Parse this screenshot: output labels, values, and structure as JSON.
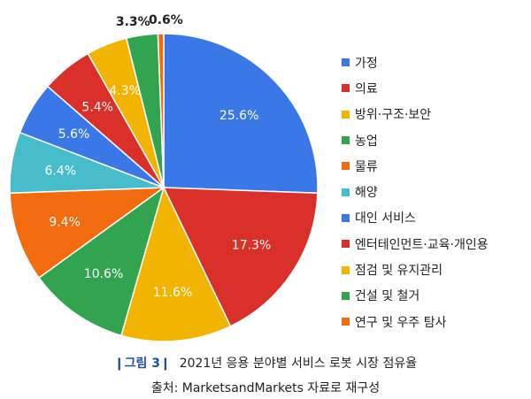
{
  "chart_data": {
    "type": "pie",
    "categories": [
      "가정",
      "의료",
      "방위·구조·보안",
      "농업",
      "물류",
      "해양",
      "대인 서비스",
      "엔터테인먼트·교육·개인용",
      "점검 및 유지관리",
      "건설 및 철거",
      "연구 및 우주 탐사"
    ],
    "values": [
      25.6,
      17.3,
      11.6,
      10.6,
      9.4,
      6.4,
      5.6,
      5.4,
      4.3,
      3.3,
      0.6
    ],
    "labels": [
      "25.6%",
      "17.3%",
      "11.6%",
      "10.6%",
      "9.4%",
      "6.4%",
      "5.6%",
      "5.4%",
      "4.3%",
      "3.3%",
      "0.6%"
    ],
    "colors": [
      "#3b78e7",
      "#d9302a",
      "#f1b400",
      "#32a44f",
      "#f26b0f",
      "#47bdcb",
      "#3b78e7",
      "#d9302a",
      "#f1b400",
      "#32a44f",
      "#f26b0f"
    ],
    "legend_position": "right",
    "start_angle": "top, clockwise"
  },
  "caption": {
    "figure": "❙그림 3❙",
    "title": "2021년 응용 분야별 서비스 로봇 시장 점유율",
    "source": "출처: MarketsandMarkets 자료로 재구성"
  }
}
